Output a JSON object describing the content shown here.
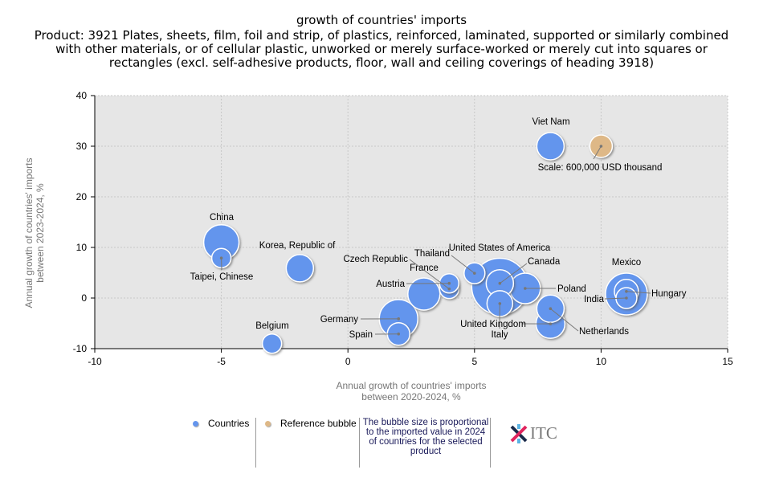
{
  "title": "growth of countries' imports",
  "subtitle": "Product: 3921 Plates, sheets, film, foil and strip, of plastics, reinforced, laminated, supported or similarly combined with other materials, or of cellular plastic, unworked or merely surface-worked or merely cut into squares or rectangles (excl. self-adhesive products, floor, wall and ceiling coverings of heading 3918)",
  "chart_data": {
    "type": "scatter",
    "subtype": "bubble",
    "xlabel": "Annual growth of countries' imports between 2020-2024, %",
    "xlabel_lines": [
      "Annual growth of countries' imports",
      "between 2020-2024, %"
    ],
    "ylabel_lines": [
      "Annual growth of countries' imports",
      "between 2023-2024, %"
    ],
    "xlim": [
      -10,
      15
    ],
    "ylim": [
      -10,
      40
    ],
    "xticks": [
      "-10",
      "-5",
      "0",
      "5",
      "10",
      "15"
    ],
    "yticks": [
      "-10",
      "0",
      "10",
      "20",
      "30",
      "40"
    ],
    "grid": true,
    "colors": {
      "countries": "#6495ED",
      "reference": "#DEB887",
      "plot_bg": "#E6E6E6"
    },
    "series": [
      {
        "name": "Countries",
        "points": [
          {
            "label": "Viet Nam",
            "x": 8,
            "y": 30,
            "size": 17
          },
          {
            "label": "China",
            "x": -5,
            "y": 11,
            "size": 22
          },
          {
            "label": "Taipei, Chinese",
            "x": -5,
            "y": 7.9,
            "size": 12
          },
          {
            "label": "Korea, Republic of",
            "x": -1.9,
            "y": 5.9,
            "size": 17
          },
          {
            "label": "Belgium",
            "x": -3,
            "y": -9,
            "size": 12
          },
          {
            "label": "Germany",
            "x": 2,
            "y": -4.1,
            "size": 24
          },
          {
            "label": "Spain",
            "x": 2,
            "y": -7.1,
            "size": 14
          },
          {
            "label": "France",
            "x": 3,
            "y": 0.8,
            "size": 20
          },
          {
            "label": "Czech Republic",
            "x": 4,
            "y": 1.8,
            "size": 12
          },
          {
            "label": "Austria",
            "x": 4,
            "y": 2.9,
            "size": 12
          },
          {
            "label": "Thailand",
            "x": 5,
            "y": 4.9,
            "size": 13
          },
          {
            "label": "United States of America",
            "x": 6,
            "y": 2.3,
            "size": 35
          },
          {
            "label": "Canada",
            "x": 6,
            "y": 2.9,
            "size": 17
          },
          {
            "label": "Poland",
            "x": 7,
            "y": 1.9,
            "size": 19
          },
          {
            "label": "Italy",
            "x": 6,
            "y": -1.1,
            "size": 16
          },
          {
            "label": "United Kingdom",
            "x": 8,
            "y": -5.1,
            "size": 18
          },
          {
            "label": "Netherlands",
            "x": 8,
            "y": -2.1,
            "size": 17
          },
          {
            "label": "Mexico",
            "x": 11,
            "y": 0.8,
            "size": 26
          },
          {
            "label": "Hungary",
            "x": 11,
            "y": 1.3,
            "size": 15
          },
          {
            "label": "India",
            "x": 11,
            "y": 0,
            "size": 13
          }
        ]
      },
      {
        "name": "Reference bubble",
        "points": [
          {
            "label": "Scale: 600,000 USD thousand",
            "x": 10,
            "y": 30,
            "size": 14
          }
        ]
      }
    ]
  },
  "legend": {
    "countries": "Countries",
    "reference": "Reference bubble",
    "note": "The bubble size is proportional to the imported value in 2024 of countries for the selected product"
  },
  "logo": "ITC"
}
